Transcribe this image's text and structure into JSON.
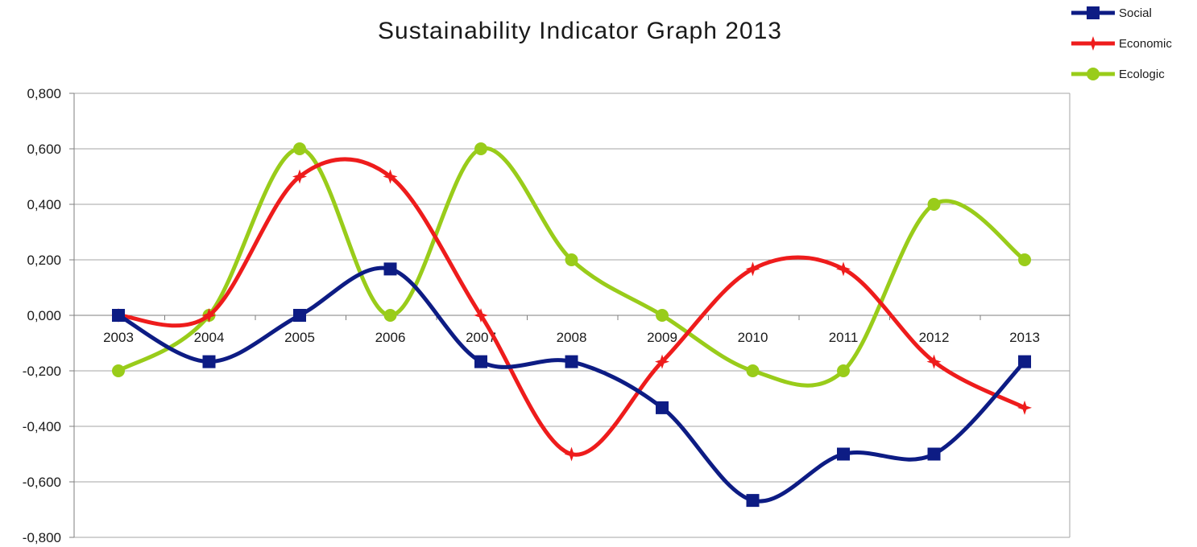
{
  "chart_data": {
    "type": "line",
    "title": "Sustainability  Indicator Graph 2013",
    "xlabel": "",
    "ylabel": "",
    "categories": [
      "2003",
      "2004",
      "2005",
      "2006",
      "2007",
      "2008",
      "2009",
      "2010",
      "2011",
      "2012",
      "2013"
    ],
    "yticks": [
      "0,800",
      "0,600",
      "0,400",
      "0,200",
      "0,000",
      "-0,200",
      "-0,400",
      "-0,600",
      "-0,800"
    ],
    "ylim": [
      -0.8,
      0.8
    ],
    "grid": true,
    "legend": "top-right",
    "smooth": true,
    "series": [
      {
        "name": "Social",
        "color": "#0d1c84",
        "marker": "square",
        "values": [
          0.0,
          -0.167,
          0.0,
          0.167,
          -0.167,
          -0.167,
          -0.333,
          -0.667,
          -0.5,
          -0.5,
          -0.167
        ]
      },
      {
        "name": "Economic",
        "color": "#ee1c1c",
        "marker": "star",
        "values": [
          0.0,
          0.0,
          0.5,
          0.5,
          0.0,
          -0.5,
          -0.167,
          0.167,
          0.167,
          -0.167,
          -0.333
        ]
      },
      {
        "name": "Ecologic",
        "color": "#99cc1a",
        "marker": "circle",
        "values": [
          -0.2,
          0.0,
          0.6,
          0.0,
          0.6,
          0.2,
          0.0,
          -0.2,
          -0.2,
          0.4,
          0.2
        ]
      }
    ]
  }
}
